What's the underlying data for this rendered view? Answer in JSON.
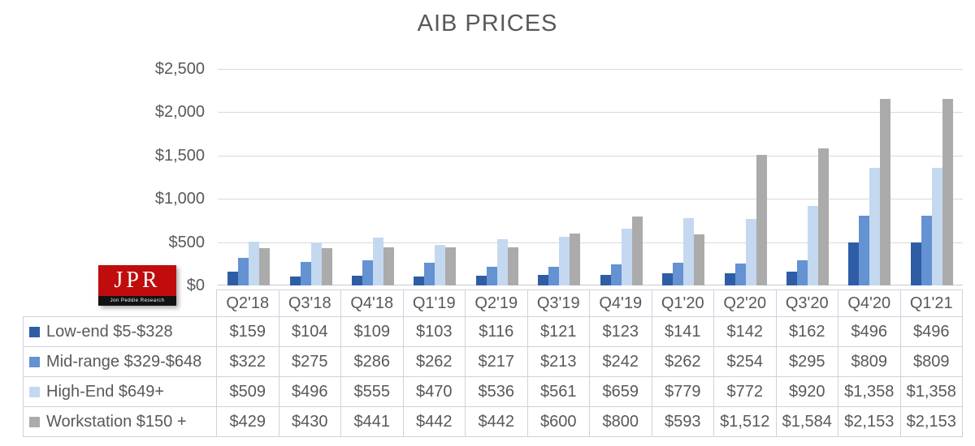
{
  "title": "AIB PRICES",
  "colors": {
    "low_end": "#2e5da6",
    "mid_range": "#6492d2",
    "high_end": "#c4d8f0",
    "workstation": "#ababab",
    "grid": "#d9d9d9",
    "text": "#595959",
    "table_border": "#cdd3dd",
    "logo_red": "#c00c0c"
  },
  "logo": {
    "text": "JPR",
    "subtext": "Jon Peddie Research"
  },
  "chart_data": {
    "type": "bar",
    "title": "AIB PRICES",
    "categories": [
      "Q2'18",
      "Q3'18",
      "Q4'18",
      "Q1'19",
      "Q2'19",
      "Q3'19",
      "Q4'19",
      "Q1'20",
      "Q2'20",
      "Q3'20",
      "Q4'20",
      "Q1'21"
    ],
    "series": [
      {
        "name": "Low-end $5-$328",
        "color_key": "low_end",
        "values": [
          159,
          104,
          109,
          103,
          116,
          121,
          123,
          141,
          142,
          162,
          496,
          496
        ]
      },
      {
        "name": "Mid-range $329-$648",
        "color_key": "mid_range",
        "values": [
          322,
          275,
          286,
          262,
          217,
          213,
          242,
          262,
          254,
          295,
          809,
          809
        ]
      },
      {
        "name": "High-End $649+",
        "color_key": "high_end",
        "values": [
          509,
          496,
          555,
          470,
          536,
          561,
          659,
          779,
          772,
          920,
          1358,
          1358
        ]
      },
      {
        "name": "Workstation $150 +",
        "color_key": "workstation",
        "values": [
          429,
          430,
          441,
          442,
          442,
          600,
          800,
          593,
          1512,
          1584,
          2153,
          2153
        ]
      }
    ],
    "xlabel": "",
    "ylabel": "",
    "ylim": [
      0,
      2500
    ],
    "y_tick_step": 500,
    "y_ticks": [
      "$2,500",
      "$2,000",
      "$1,500",
      "$1,000",
      "$500",
      "$0"
    ],
    "grid": true,
    "legend_position": "table-left"
  },
  "table": {
    "corner_label": "",
    "header": [
      "Q2'18",
      "Q3'18",
      "Q4'18",
      "Q1'19",
      "Q2'19",
      "Q3'19",
      "Q4'19",
      "Q1'20",
      "Q2'20",
      "Q3'20",
      "Q4'20",
      "Q1'21"
    ],
    "rows": [
      {
        "label": "Low-end $5-$328",
        "swatch_key": "low_end",
        "cells": [
          "$159",
          "$104",
          "$109",
          "$103",
          "$116",
          "$121",
          "$123",
          "$141",
          "$142",
          "$162",
          "$496",
          "$496"
        ]
      },
      {
        "label": "Mid-range $329-$648",
        "swatch_key": "mid_range",
        "cells": [
          "$322",
          "$275",
          "$286",
          "$262",
          "$217",
          "$213",
          "$242",
          "$262",
          "$254",
          "$295",
          "$809",
          "$809"
        ]
      },
      {
        "label": "High-End $649+",
        "swatch_key": "high_end",
        "cells": [
          "$509",
          "$496",
          "$555",
          "$470",
          "$536",
          "$561",
          "$659",
          "$779",
          "$772",
          "$920",
          "$1,358",
          "$1,358"
        ]
      },
      {
        "label": "Workstation $150 +",
        "swatch_key": "workstation",
        "cells": [
          "$429",
          "$430",
          "$441",
          "$442",
          "$442",
          "$600",
          "$800",
          "$593",
          "$1,512",
          "$1,584",
          "$2,153",
          "$2,153"
        ]
      }
    ]
  }
}
